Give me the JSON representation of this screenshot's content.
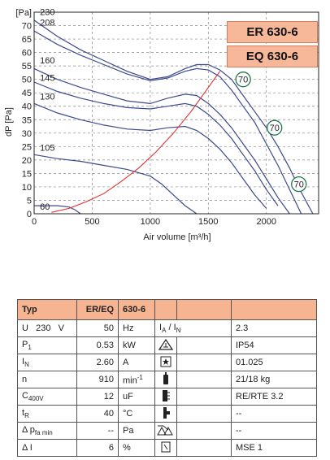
{
  "models": [
    "ER 630-6",
    "EQ 630-6"
  ],
  "chart_data": {
    "type": "line",
    "xlabel": "Air volume [m³/h]",
    "ylabel": "dP [Pa]",
    "xlim": [
      0,
      2450
    ],
    "ylim": [
      0,
      75
    ],
    "x_ticks": [
      0,
      500,
      1000,
      1500,
      2000
    ],
    "y_ticks": [
      0,
      5,
      10,
      15,
      20,
      25,
      30,
      35,
      40,
      45,
      50,
      55,
      60,
      65,
      70,
      75
    ],
    "y_tick_labels": [
      "0",
      "5",
      "10",
      "15",
      "20",
      "25",
      "30",
      "35",
      "40",
      "45",
      "50",
      "55",
      "60",
      "65",
      "70",
      "[Pa]"
    ],
    "grid": true,
    "curve_labels": [
      "230",
      "208",
      "160",
      "145",
      "130",
      "105",
      "60"
    ],
    "performance_markers": [
      "70",
      "70",
      "70"
    ],
    "series": [
      {
        "x": [
          0,
          200,
          400,
          600,
          800,
          1000,
          1150,
          1300,
          1400,
          1500,
          1600,
          1700,
          1800,
          1900,
          2000,
          2100,
          2200,
          2300,
          2400
        ],
        "y": [
          72,
          66,
          61,
          57,
          53,
          50,
          51,
          54,
          55.5,
          55.5,
          53.5,
          50,
          44,
          38,
          32,
          25,
          17,
          8,
          0
        ]
      },
      {
        "x": [
          0,
          200,
          400,
          600,
          800,
          1000,
          1150,
          1300,
          1400,
          1500,
          1600,
          1700,
          1800,
          1900,
          2000,
          2100,
          2200,
          2300
        ],
        "y": [
          68,
          63,
          59,
          55.5,
          52,
          49.5,
          50.5,
          53,
          54,
          53.5,
          51,
          46,
          40,
          34,
          26,
          18,
          9,
          0
        ]
      },
      {
        "x": [
          0,
          200,
          400,
          600,
          800,
          1000,
          1150,
          1300,
          1400,
          1500,
          1600,
          1700,
          1800,
          1900,
          2000,
          2100,
          2200
        ],
        "y": [
          54,
          50,
          47,
          44.5,
          42,
          41,
          43,
          44.5,
          44,
          41,
          37,
          32,
          26,
          20,
          13,
          6,
          0
        ]
      },
      {
        "x": [
          0,
          200,
          400,
          600,
          800,
          1000,
          1150,
          1300,
          1400,
          1500,
          1600,
          1700,
          1800,
          1900,
          2000,
          2100
        ],
        "y": [
          49,
          45.5,
          43,
          41,
          39.5,
          39,
          40,
          41,
          40,
          37,
          33,
          28,
          22,
          16,
          9,
          3
        ]
      },
      {
        "x": [
          0,
          200,
          400,
          600,
          800,
          1000,
          1150,
          1300,
          1400,
          1500,
          1600,
          1700,
          1800,
          1900,
          2000
        ],
        "y": [
          41,
          37.5,
          35,
          33,
          31.5,
          31,
          32,
          32.5,
          31,
          28,
          24,
          19,
          13,
          7,
          2
        ]
      },
      {
        "x": [
          0,
          200,
          400,
          600,
          800,
          1000,
          1100,
          1200,
          1300,
          1400
        ],
        "y": [
          22,
          20.5,
          19.5,
          18,
          16.5,
          14,
          11,
          7,
          3,
          0
        ]
      },
      {
        "x": [
          0,
          100,
          200,
          300,
          350,
          400
        ],
        "y": [
          3,
          3,
          3,
          2.5,
          1.5,
          0
        ]
      }
    ],
    "system_curve": {
      "x": [
        150,
        300,
        450,
        600,
        750,
        900,
        1050,
        1200,
        1350,
        1500,
        1600
      ],
      "y": [
        0.5,
        2,
        4.5,
        7.5,
        12,
        17,
        23,
        30,
        38,
        47,
        53
      ]
    },
    "marker_points": [
      {
        "x": 1800,
        "y": 50,
        "label": "70"
      },
      {
        "x": 2070,
        "y": 32,
        "label": "70"
      },
      {
        "x": 2280,
        "y": 11,
        "label": "70"
      }
    ],
    "curve_label_positions": [
      {
        "x": 50,
        "y": 74,
        "label": "230"
      },
      {
        "x": 50,
        "y": 70,
        "label": "208"
      },
      {
        "x": 50,
        "y": 56,
        "label": "160"
      },
      {
        "x": 50,
        "y": 49.5,
        "label": "145"
      },
      {
        "x": 50,
        "y": 42.5,
        "label": "130"
      },
      {
        "x": 50,
        "y": 23.5,
        "label": "105"
      },
      {
        "x": 50,
        "y": 1.5,
        "label": "60"
      }
    ]
  },
  "table": {
    "header": {
      "typ": "Typ",
      "model": "ER/EQ",
      "value": "630-6"
    },
    "rows": [
      {
        "p": "U",
        "p2": "230",
        "p3": "V",
        "v": "50",
        "u": "Hz",
        "rp": "I",
        "rp_sub": "A",
        "rp2": "/ I",
        "rp2_sub": "N",
        "rv": "2.3",
        "icon": "current-ratio-icon"
      },
      {
        "p": "P",
        "p_sub": "1",
        "v": "0.53",
        "u": "kW",
        "rp": "",
        "rv": "IP54",
        "icon": "protection-class-icon"
      },
      {
        "p": "I",
        "p_sub": "N",
        "v": "2.60",
        "u": "A",
        "rp": "",
        "rv": "01.025",
        "icon": "approval-star-icon"
      },
      {
        "p": "n",
        "v": "910",
        "u": "min",
        "u_sup": "-1",
        "rp": "",
        "rv": "21/18 kg",
        "icon": "weight-icon"
      },
      {
        "p": "C",
        "p_sub": "400V",
        "v": "12",
        "u": "uF",
        "rp": "",
        "rv": "RE/RTE 3.2",
        "icon": "controller-icon"
      },
      {
        "p": "t",
        "p_sub": "R",
        "v": "40",
        "u": "°C",
        "rp": "",
        "rv": "--",
        "icon": "switch-icon"
      },
      {
        "p": "Δ p",
        "p_sub": "fa min",
        "v": "--",
        "u": "Pa",
        "rp": "",
        "rv": "--",
        "icon": "pressure-switch-icon"
      },
      {
        "p": "Δ I",
        "v": "6",
        "u": "%",
        "rp": "",
        "rv": "MSE 1",
        "icon": "motor-protection-icon"
      }
    ]
  },
  "colors": {
    "curve": "#3c4a8c",
    "system_curve": "#e03030",
    "marker_ring": "#1f7a48",
    "label_bg": "#f7b89a",
    "header_bg": "#f6b490"
  }
}
